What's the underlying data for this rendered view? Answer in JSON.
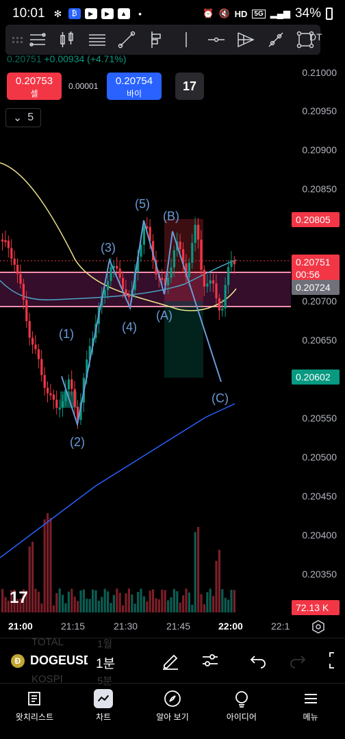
{
  "status_bar": {
    "time": "10:01",
    "battery": "34%",
    "network": "5G",
    "hd": "HD"
  },
  "header": {
    "pair_suffix": "DT",
    "price_change_last": "0.20751",
    "price_change": "+0.00934 (+4.71%)",
    "sell": {
      "price": "0.20753",
      "label": "셀"
    },
    "spread": "0.00001",
    "buy": {
      "price": "0.20754",
      "label": "바이"
    },
    "collapse_count": "5"
  },
  "chart": {
    "price_axis": [
      "0.21000",
      "0.20950",
      "0.20900",
      "0.20850",
      "0.20700",
      "0.20650",
      "0.20550",
      "0.20500",
      "0.20450",
      "0.20400",
      "0.20350"
    ],
    "tags": {
      "upper": "0.20805",
      "last": "0.20751",
      "countdown": "00:56",
      "ma": "0.20724",
      "lower": "0.20602",
      "volume": "72.13 K"
    },
    "wave_labels": [
      "(1)",
      "(2)",
      "(3)",
      "(4)",
      "(5)",
      "(A)",
      "(B)",
      "(C)"
    ],
    "colors": {
      "up": "#089981",
      "down": "#f23645",
      "ma_yellow": "#f0e68c",
      "ma_blue": "#2962ff",
      "wave": "#6a9bd8"
    }
  },
  "time_axis": [
    "21:00",
    "21:15",
    "21:30",
    "21:45",
    "22:00",
    "22:1"
  ],
  "symbol_row": {
    "ghost_top": [
      "TOTAL",
      "1월"
    ],
    "ghost_bottom": [
      "KOSPI",
      "5분"
    ],
    "symbol": "DOGEUSDT",
    "interval": "1분"
  },
  "bottom_nav": [
    {
      "label": "왓치리스트",
      "icon": "watchlist-icon"
    },
    {
      "label": "차트",
      "icon": "chart-icon"
    },
    {
      "label": "알아 보기",
      "icon": "compass-icon"
    },
    {
      "label": "아이디어",
      "icon": "lightbulb-icon"
    },
    {
      "label": "메뉴",
      "icon": "menu-icon"
    }
  ]
}
